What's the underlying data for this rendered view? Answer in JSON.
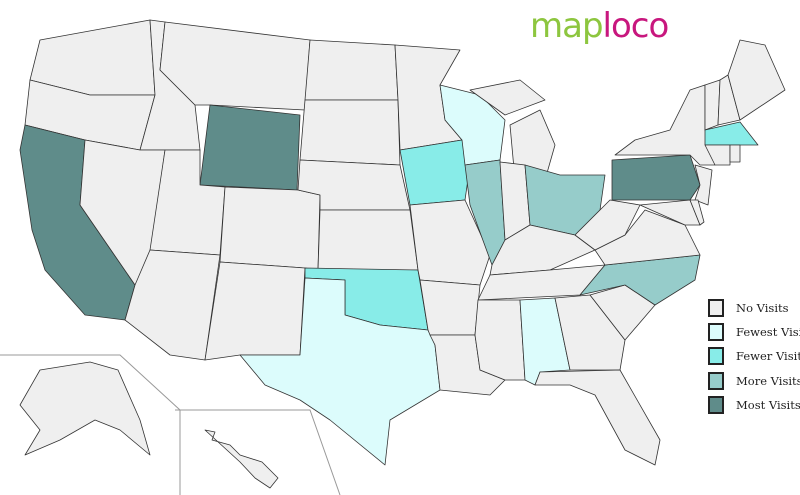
{
  "logo": {
    "part1": "map",
    "part2": "loco"
  },
  "levels": {
    "none": {
      "label": "No Visits",
      "color": "#efefef"
    },
    "fewest": {
      "label": "Fewest Visits",
      "color": "#dcfcfc"
    },
    "fewer": {
      "label": "Fewer Visits",
      "color": "#88ece8"
    },
    "more": {
      "label": "More Visits",
      "color": "#96ccca"
    },
    "most": {
      "label": "Most Visits",
      "color": "#5f8c8a"
    }
  },
  "legend_order": [
    "none",
    "fewest",
    "fewer",
    "more",
    "most"
  ],
  "states": {
    "WA": "none",
    "OR": "none",
    "CA": "most",
    "ID": "none",
    "NV": "none",
    "MT": "none",
    "WY": "most",
    "UT": "none",
    "AZ": "none",
    "CO": "none",
    "NM": "none",
    "ND": "none",
    "SD": "none",
    "NE": "none",
    "KS": "none",
    "OK": "fewer",
    "TX": "fewest",
    "MN": "none",
    "IA": "fewer",
    "MO": "none",
    "AR": "none",
    "LA": "none",
    "WI": "fewest",
    "IL": "more",
    "MI": "none",
    "MIU": "none",
    "IN": "none",
    "OH": "more",
    "KY": "none",
    "TN": "none",
    "MS": "none",
    "AL": "fewest",
    "GA": "none",
    "FL": "none",
    "SC": "none",
    "NC": "more",
    "VA": "none",
    "WV": "none",
    "PA": "most",
    "NY": "none",
    "NJ": "none",
    "MD": "none",
    "DE": "none",
    "VT": "none",
    "NH": "none",
    "ME": "none",
    "MA": "fewer",
    "CT": "none",
    "RI": "none",
    "AK": "none",
    "HI": "none"
  }
}
